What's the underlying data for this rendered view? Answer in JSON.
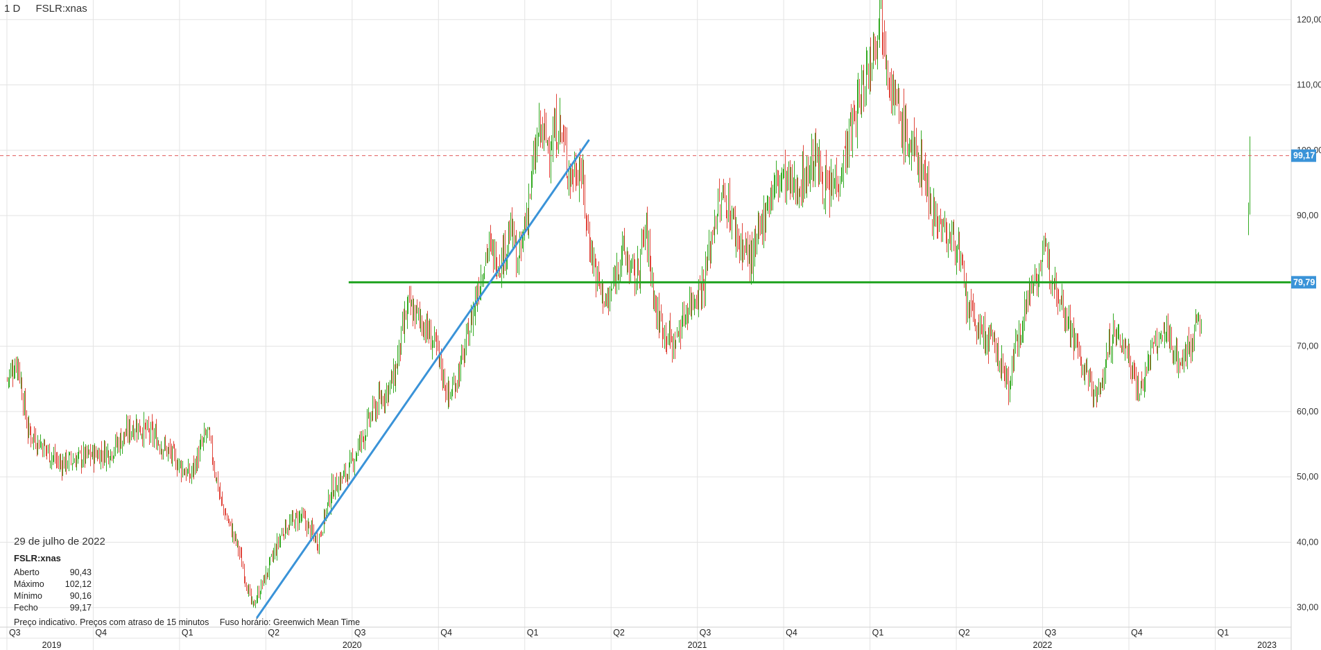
{
  "header": {
    "interval": "1 D",
    "symbol": "FSLR:xnas"
  },
  "info": {
    "date": "29 de julho de 2022",
    "symbol": "FSLR:xnas",
    "rows": [
      {
        "label": "Aberto",
        "value": "90,43"
      },
      {
        "label": "Máximo",
        "value": "102,12"
      },
      {
        "label": "Mínimo",
        "value": "90,16"
      },
      {
        "label": "Fecho",
        "value": "99,17"
      }
    ]
  },
  "footer": {
    "delay_note": "Preço indicativo. Preços com atraso de 15 minutos",
    "timezone": "Fuso horário: Greenwich Mean Time"
  },
  "colors": {
    "up": "#33aa22",
    "down": "#e0443a",
    "trendline": "#3a93d8",
    "support": "#1fa31f",
    "current": "#e05a5a",
    "badge": "#3a93d8",
    "grid": "#e3e3e3"
  },
  "chart_data": {
    "type": "ohlc",
    "y_ticks": [
      "120,00",
      "110,00",
      "100,00",
      "90,00",
      "70,00",
      "60,00",
      "50,00",
      "40,00",
      "30,00"
    ],
    "y_tick_values": [
      120,
      110,
      100,
      90,
      70,
      60,
      50,
      40,
      30
    ],
    "ylim": [
      27,
      123
    ],
    "x_quarters": [
      {
        "label": "Q3",
        "t": 2019.5
      },
      {
        "label": "Q4",
        "t": 2019.75
      },
      {
        "label": "Q1",
        "t": 2020.0
      },
      {
        "label": "Q2",
        "t": 2020.25
      },
      {
        "label": "Q3",
        "t": 2020.5
      },
      {
        "label": "Q4",
        "t": 2020.75
      },
      {
        "label": "Q1",
        "t": 2021.0
      },
      {
        "label": "Q2",
        "t": 2021.25
      },
      {
        "label": "Q3",
        "t": 2021.5
      },
      {
        "label": "Q4",
        "t": 2021.75
      },
      {
        "label": "Q1",
        "t": 2022.0
      },
      {
        "label": "Q2",
        "t": 2022.25
      },
      {
        "label": "Q3",
        "t": 2022.5
      },
      {
        "label": "Q4",
        "t": 2022.75
      },
      {
        "label": "Q1",
        "t": 2023.0
      }
    ],
    "x_years": [
      {
        "label": "2019",
        "t": 2019.63
      },
      {
        "label": "2020",
        "t": 2020.5
      },
      {
        "label": "2021",
        "t": 2021.5
      },
      {
        "label": "2022",
        "t": 2022.5
      },
      {
        "label": "2023",
        "t": 2023.15
      }
    ],
    "xlim": [
      2019.48,
      2023.22
    ],
    "price_path": [
      [
        2019.5,
        65
      ],
      [
        2019.53,
        68
      ],
      [
        2019.56,
        57
      ],
      [
        2019.6,
        55
      ],
      [
        2019.65,
        52
      ],
      [
        2019.72,
        53
      ],
      [
        2019.8,
        54
      ],
      [
        2019.87,
        58
      ],
      [
        2019.93,
        56
      ],
      [
        2019.98,
        53
      ],
      [
        2020.03,
        50
      ],
      [
        2020.08,
        57
      ],
      [
        2020.12,
        46
      ],
      [
        2020.17,
        39
      ],
      [
        2020.21,
        30
      ],
      [
        2020.25,
        35
      ],
      [
        2020.3,
        42
      ],
      [
        2020.35,
        44
      ],
      [
        2020.4,
        40
      ],
      [
        2020.44,
        48
      ],
      [
        2020.49,
        51
      ],
      [
        2020.52,
        55
      ],
      [
        2020.56,
        60
      ],
      [
        2020.62,
        65
      ],
      [
        2020.66,
        76
      ],
      [
        2020.7,
        74
      ],
      [
        2020.74,
        70
      ],
      [
        2020.78,
        62
      ],
      [
        2020.82,
        68
      ],
      [
        2020.86,
        78
      ],
      [
        2020.89,
        85
      ],
      [
        2020.93,
        83
      ],
      [
        2020.96,
        88
      ],
      [
        2020.98,
        82
      ],
      [
        2021.01,
        92
      ],
      [
        2021.04,
        103
      ],
      [
        2021.07,
        101
      ],
      [
        2021.1,
        104
      ],
      [
        2021.13,
        96
      ],
      [
        2021.16,
        98
      ],
      [
        2021.18,
        88
      ],
      [
        2021.21,
        80
      ],
      [
        2021.24,
        76
      ],
      [
        2021.28,
        85
      ],
      [
        2021.32,
        80
      ],
      [
        2021.35,
        88
      ],
      [
        2021.38,
        75
      ],
      [
        2021.43,
        70
      ],
      [
        2021.47,
        76
      ],
      [
        2021.52,
        80
      ],
      [
        2021.55,
        90
      ],
      [
        2021.58,
        93
      ],
      [
        2021.62,
        86
      ],
      [
        2021.66,
        83
      ],
      [
        2021.7,
        92
      ],
      [
        2021.74,
        96
      ],
      [
        2021.78,
        94
      ],
      [
        2021.81,
        96
      ],
      [
        2021.84,
        99
      ],
      [
        2021.88,
        93
      ],
      [
        2021.92,
        98
      ],
      [
        2021.96,
        106
      ],
      [
        2022.0,
        114
      ],
      [
        2022.03,
        122
      ],
      [
        2022.06,
        110
      ],
      [
        2022.09,
        104
      ],
      [
        2022.12,
        100
      ],
      [
        2022.15,
        98
      ],
      [
        2022.18,
        91
      ],
      [
        2022.22,
        87
      ],
      [
        2022.25,
        86
      ],
      [
        2022.28,
        76
      ],
      [
        2022.32,
        72
      ],
      [
        2022.36,
        70
      ],
      [
        2022.4,
        64
      ],
      [
        2022.43,
        72
      ],
      [
        2022.47,
        80
      ],
      [
        2022.51,
        84
      ],
      [
        2022.55,
        78
      ],
      [
        2022.58,
        73
      ],
      [
        2022.62,
        66
      ],
      [
        2022.66,
        62
      ],
      [
        2022.7,
        72
      ],
      [
        2022.74,
        70
      ],
      [
        2022.78,
        63
      ],
      [
        2022.82,
        70
      ],
      [
        2022.86,
        72
      ],
      [
        2022.9,
        67
      ],
      [
        2022.93,
        71
      ],
      [
        2022.96,
        75
      ]
    ],
    "last_bars": [
      {
        "t": 2023.095,
        "o": 88,
        "h": 92,
        "l": 87,
        "c": 90
      },
      {
        "t": 2023.1,
        "o": 90.43,
        "h": 102.12,
        "l": 90.16,
        "c": 99.17
      }
    ],
    "trendline": {
      "t1": 2020.225,
      "p1": 28.5,
      "t2": 2021.185,
      "p2": 101.5
    },
    "support_line": {
      "t1": 2020.49,
      "value": 79.79,
      "label": "79,79"
    },
    "current_price": {
      "value": 99.17,
      "label": "99,17"
    }
  }
}
